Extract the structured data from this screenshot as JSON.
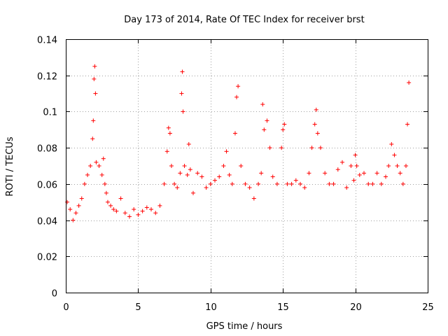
{
  "chart_data": {
    "type": "scatter",
    "title": "Day 173 of 2014, Rate Of TEC Index for receiver brst",
    "xlabel": "GPS time / hours",
    "ylabel": "ROTI / TECUs",
    "xlim": [
      0,
      25
    ],
    "ylim": [
      0,
      0.14
    ],
    "xticks": [
      0,
      5,
      10,
      15,
      20,
      25
    ],
    "xtick_labels": [
      "0",
      "5",
      "10",
      "15",
      "20",
      "25"
    ],
    "yticks": [
      0,
      0.02,
      0.04,
      0.06,
      0.08,
      0.1,
      0.12,
      0.14
    ],
    "ytick_labels": [
      "0",
      "0.02",
      "0.04",
      "0.06",
      "0.08",
      "0.1",
      "0.12",
      "0.14"
    ],
    "grid": true,
    "marker": "+",
    "series_color": "#ff0000",
    "series": [
      {
        "name": "ROTI",
        "x": [
          0.1,
          0.3,
          0.5,
          0.7,
          0.9,
          1.1,
          1.3,
          1.5,
          1.7,
          1.85,
          1.9,
          1.95,
          2.0,
          2.05,
          2.1,
          2.3,
          2.5,
          2.6,
          2.7,
          2.8,
          2.9,
          3.1,
          3.3,
          3.5,
          3.8,
          4.1,
          4.4,
          4.7,
          5.0,
          5.3,
          5.6,
          5.9,
          6.2,
          6.5,
          6.8,
          7.0,
          7.1,
          7.2,
          7.3,
          7.5,
          7.7,
          7.9,
          8.0,
          8.05,
          8.1,
          8.2,
          8.4,
          8.5,
          8.6,
          8.8,
          9.1,
          9.4,
          9.7,
          10.0,
          10.3,
          10.6,
          10.9,
          11.1,
          11.3,
          11.5,
          11.7,
          11.8,
          11.9,
          12.1,
          12.4,
          12.7,
          13.0,
          13.3,
          13.5,
          13.6,
          13.7,
          13.9,
          14.1,
          14.3,
          14.6,
          14.9,
          15.0,
          15.1,
          15.3,
          15.6,
          15.9,
          16.2,
          16.5,
          16.8,
          17.0,
          17.2,
          17.3,
          17.4,
          17.6,
          17.9,
          18.2,
          18.5,
          18.8,
          19.1,
          19.4,
          19.7,
          19.9,
          20.0,
          20.1,
          20.3,
          20.6,
          20.9,
          21.2,
          21.5,
          21.8,
          22.1,
          22.3,
          22.5,
          22.7,
          22.9,
          23.1,
          23.3,
          23.5,
          23.6,
          23.7
        ],
        "values": [
          0.05,
          0.046,
          0.04,
          0.044,
          0.048,
          0.052,
          0.06,
          0.065,
          0.07,
          0.085,
          0.095,
          0.118,
          0.125,
          0.11,
          0.072,
          0.07,
          0.065,
          0.074,
          0.06,
          0.055,
          0.05,
          0.048,
          0.046,
          0.045,
          0.052,
          0.044,
          0.042,
          0.046,
          0.043,
          0.045,
          0.047,
          0.046,
          0.044,
          0.048,
          0.06,
          0.078,
          0.091,
          0.088,
          0.07,
          0.06,
          0.058,
          0.066,
          0.11,
          0.122,
          0.1,
          0.07,
          0.065,
          0.082,
          0.068,
          0.055,
          0.066,
          0.064,
          0.058,
          0.06,
          0.062,
          0.064,
          0.07,
          0.078,
          0.065,
          0.06,
          0.088,
          0.108,
          0.114,
          0.07,
          0.06,
          0.058,
          0.052,
          0.06,
          0.066,
          0.104,
          0.09,
          0.095,
          0.08,
          0.064,
          0.06,
          0.08,
          0.09,
          0.093,
          0.06,
          0.06,
          0.062,
          0.06,
          0.058,
          0.066,
          0.08,
          0.093,
          0.101,
          0.088,
          0.08,
          0.066,
          0.06,
          0.06,
          0.068,
          0.072,
          0.058,
          0.07,
          0.062,
          0.076,
          0.07,
          0.065,
          0.066,
          0.06,
          0.06,
          0.066,
          0.06,
          0.064,
          0.07,
          0.082,
          0.076,
          0.07,
          0.066,
          0.06,
          0.07,
          0.093,
          0.116
        ]
      }
    ]
  }
}
